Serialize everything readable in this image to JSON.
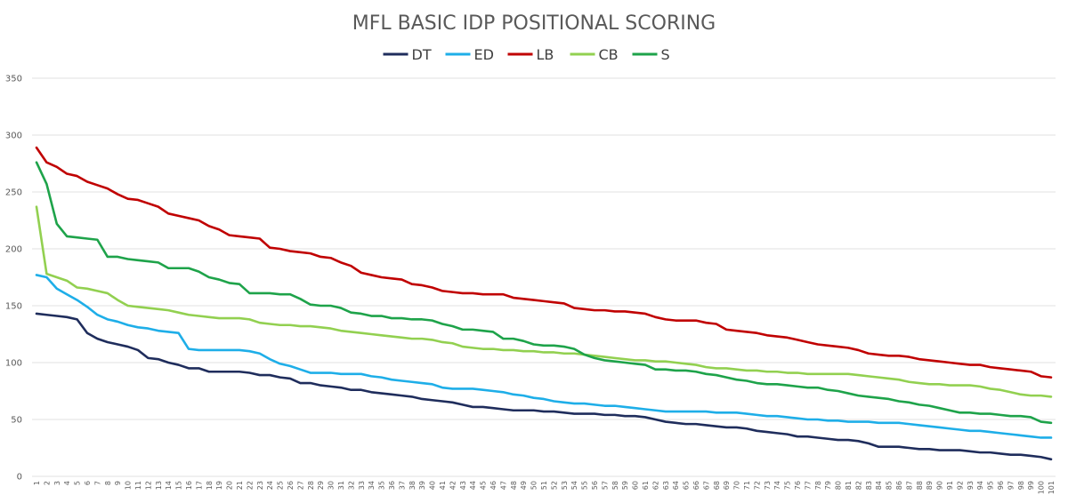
{
  "chart_data": {
    "type": "line",
    "title": "MFL BASIC IDP POSITIONAL SCORING",
    "legend_position": "top-center",
    "grid": true,
    "ylim": [
      0,
      350
    ],
    "yticks": [
      0,
      50,
      100,
      150,
      200,
      250,
      300,
      350
    ],
    "x": [
      1,
      2,
      3,
      4,
      5,
      6,
      7,
      8,
      9,
      10,
      11,
      12,
      13,
      14,
      15,
      16,
      17,
      18,
      19,
      20,
      21,
      22,
      23,
      24,
      25,
      26,
      27,
      28,
      29,
      30,
      31,
      32,
      33,
      34,
      35,
      36,
      37,
      38,
      39,
      40,
      41,
      42,
      43,
      44,
      45,
      46,
      47,
      48,
      49,
      50,
      51,
      52,
      53,
      54,
      55,
      56,
      57,
      58,
      59,
      60,
      61,
      62,
      63,
      64,
      65,
      66,
      67,
      68,
      69,
      70,
      71,
      72,
      73,
      74,
      75,
      76,
      77,
      78,
      79,
      80,
      81,
      82,
      83,
      84,
      85,
      86,
      87,
      88,
      89,
      90,
      91,
      92,
      93,
      94,
      95,
      96,
      97,
      98,
      99,
      100,
      101
    ],
    "series": [
      {
        "name": "DT",
        "color": "#1f2d5c",
        "values": [
          143,
          142,
          141,
          140,
          138,
          126,
          121,
          118,
          116,
          114,
          111,
          104,
          103,
          100,
          98,
          95,
          95,
          92,
          92,
          92,
          92,
          91,
          89,
          89,
          87,
          86,
          82,
          82,
          80,
          79,
          78,
          76,
          76,
          74,
          73,
          72,
          71,
          70,
          68,
          67,
          66,
          65,
          63,
          61,
          61,
          60,
          59,
          58,
          58,
          58,
          57,
          57,
          56,
          55,
          55,
          55,
          54,
          54,
          53,
          53,
          52,
          50,
          48,
          47,
          46,
          46,
          45,
          44,
          43,
          43,
          42,
          40,
          39,
          38,
          37,
          35,
          35,
          34,
          33,
          32,
          32,
          31,
          29,
          26,
          26,
          26,
          25,
          24,
          24,
          23,
          23,
          23,
          22,
          21,
          21,
          20,
          19,
          19,
          18,
          17,
          15
        ]
      },
      {
        "name": "ED",
        "color": "#1eaee8",
        "values": [
          177,
          175,
          165,
          160,
          155,
          149,
          142,
          138,
          136,
          133,
          131,
          130,
          128,
          127,
          126,
          112,
          111,
          111,
          111,
          111,
          111,
          110,
          108,
          103,
          99,
          97,
          94,
          91,
          91,
          91,
          90,
          90,
          90,
          88,
          87,
          85,
          84,
          83,
          82,
          81,
          78,
          77,
          77,
          77,
          76,
          75,
          74,
          72,
          71,
          69,
          68,
          66,
          65,
          64,
          64,
          63,
          62,
          62,
          61,
          60,
          59,
          58,
          57,
          57,
          57,
          57,
          57,
          56,
          56,
          56,
          55,
          54,
          53,
          53,
          52,
          51,
          50,
          50,
          49,
          49,
          48,
          48,
          48,
          47,
          47,
          47,
          46,
          45,
          44,
          43,
          42,
          41,
          40,
          40,
          39,
          38,
          37,
          36,
          35,
          34,
          34
        ]
      },
      {
        "name": "LB",
        "color": "#c00000",
        "values": [
          289,
          276,
          272,
          266,
          264,
          259,
          256,
          253,
          248,
          244,
          243,
          240,
          237,
          231,
          229,
          227,
          225,
          220,
          217,
          212,
          211,
          210,
          209,
          201,
          200,
          198,
          197,
          196,
          193,
          192,
          188,
          185,
          179,
          177,
          175,
          174,
          173,
          169,
          168,
          166,
          163,
          162,
          161,
          161,
          160,
          160,
          160,
          157,
          156,
          155,
          154,
          153,
          152,
          148,
          147,
          146,
          146,
          145,
          145,
          144,
          143,
          140,
          138,
          137,
          137,
          137,
          135,
          134,
          129,
          128,
          127,
          126,
          124,
          123,
          122,
          120,
          118,
          116,
          115,
          114,
          113,
          111,
          108,
          107,
          106,
          106,
          105,
          103,
          102,
          101,
          100,
          99,
          98,
          98,
          96,
          95,
          94,
          93,
          92,
          88,
          87
        ]
      },
      {
        "name": "CB",
        "color": "#92d050",
        "values": [
          237,
          178,
          175,
          172,
          166,
          165,
          163,
          161,
          155,
          150,
          149,
          148,
          147,
          146,
          144,
          142,
          141,
          140,
          139,
          139,
          139,
          138,
          135,
          134,
          133,
          133,
          132,
          132,
          131,
          130,
          128,
          127,
          126,
          125,
          124,
          123,
          122,
          121,
          121,
          120,
          118,
          117,
          114,
          113,
          112,
          112,
          111,
          111,
          110,
          110,
          109,
          109,
          108,
          108,
          107,
          106,
          105,
          104,
          103,
          102,
          102,
          101,
          101,
          100,
          99,
          98,
          96,
          95,
          95,
          94,
          93,
          93,
          92,
          92,
          91,
          91,
          90,
          90,
          90,
          90,
          90,
          89,
          88,
          87,
          86,
          85,
          83,
          82,
          81,
          81,
          80,
          80,
          80,
          79,
          77,
          76,
          74,
          72,
          71,
          71,
          70
        ]
      },
      {
        "name": "S",
        "color": "#1ea34a",
        "values": [
          276,
          257,
          222,
          211,
          210,
          209,
          208,
          193,
          193,
          191,
          190,
          189,
          188,
          183,
          183,
          183,
          180,
          175,
          173,
          170,
          169,
          161,
          161,
          161,
          160,
          160,
          156,
          151,
          150,
          150,
          148,
          144,
          143,
          141,
          141,
          139,
          139,
          138,
          138,
          137,
          134,
          132,
          129,
          129,
          128,
          127,
          121,
          121,
          119,
          116,
          115,
          115,
          114,
          112,
          107,
          104,
          102,
          101,
          100,
          99,
          98,
          94,
          94,
          93,
          93,
          92,
          90,
          89,
          87,
          85,
          84,
          82,
          81,
          81,
          80,
          79,
          78,
          78,
          76,
          75,
          73,
          71,
          70,
          69,
          68,
          66,
          65,
          63,
          62,
          60,
          58,
          56,
          56,
          55,
          55,
          54,
          53,
          53,
          52,
          48,
          47
        ]
      }
    ]
  }
}
